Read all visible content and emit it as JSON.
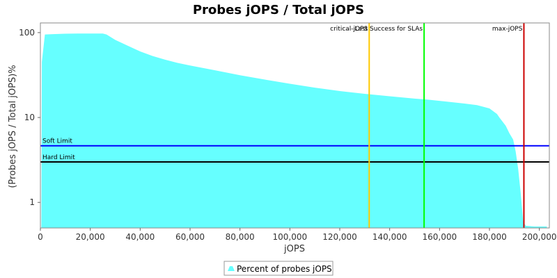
{
  "chart_data": {
    "type": "area",
    "title": "Probes jOPS / Total jOPS",
    "xlabel": "jOPS",
    "ylabel": "(Probes jOPS / Total jOPS)%",
    "xlim": [
      0,
      204000
    ],
    "ylim": [
      0.5,
      130
    ],
    "yscale": "log",
    "grid": false,
    "x_ticks": [
      0,
      20000,
      40000,
      60000,
      80000,
      100000,
      120000,
      140000,
      160000,
      180000,
      200000
    ],
    "x_tick_labels": [
      "0",
      "20,000",
      "40,000",
      "60,000",
      "80,000",
      "100,000",
      "120,000",
      "140,000",
      "160,000",
      "180,000",
      "200,000"
    ],
    "y_ticks": [
      1,
      10,
      100
    ],
    "y_tick_labels": [
      "1",
      "10",
      "100"
    ],
    "series": [
      {
        "name": "Percent of probes jOPS",
        "color": "#66ffff",
        "points": [
          [
            400,
            0.5
          ],
          [
            600,
            45
          ],
          [
            1800,
            95
          ],
          [
            5000,
            96
          ],
          [
            10000,
            97
          ],
          [
            15000,
            97.5
          ],
          [
            20000,
            97.5
          ],
          [
            25000,
            97.5
          ],
          [
            26500,
            95
          ],
          [
            30000,
            82
          ],
          [
            35000,
            70
          ],
          [
            40000,
            60
          ],
          [
            45000,
            53
          ],
          [
            50000,
            48
          ],
          [
            55000,
            44
          ],
          [
            60000,
            41
          ],
          [
            70000,
            36
          ],
          [
            80000,
            31.5
          ],
          [
            90000,
            28
          ],
          [
            100000,
            25
          ],
          [
            110000,
            22.5
          ],
          [
            120000,
            20.5
          ],
          [
            130000,
            19
          ],
          [
            140000,
            17.8
          ],
          [
            150000,
            16.7
          ],
          [
            155000,
            16.3
          ],
          [
            160000,
            15.7
          ],
          [
            170000,
            14.6
          ],
          [
            175000,
            14
          ],
          [
            180000,
            12.8
          ],
          [
            183000,
            11
          ],
          [
            184000,
            10
          ],
          [
            186500,
            8
          ],
          [
            188000,
            6.5
          ],
          [
            189500,
            5.5
          ],
          [
            190500,
            4
          ],
          [
            191500,
            2.5
          ],
          [
            192500,
            1.3
          ],
          [
            193500,
            0.6
          ],
          [
            194500,
            0.53
          ],
          [
            198000,
            0.52
          ],
          [
            203000,
            0.52
          ],
          [
            203000,
            0.5
          ]
        ]
      }
    ],
    "horizontal_lines": [
      {
        "label": "Soft Limit",
        "y": 4.65,
        "color": "#0000ff"
      },
      {
        "label": "Hard Limit",
        "y": 3.0,
        "color": "#000000"
      }
    ],
    "vertical_lines": [
      {
        "label": "critical-jOPS",
        "x": 131800,
        "color": "#ffc800"
      },
      {
        "label": "Last Success for SLAs",
        "x": 153800,
        "color": "#00ff00"
      },
      {
        "label": "max-jOPS",
        "x": 193800,
        "color": "#cc0000"
      }
    ],
    "legend": {
      "position": "bottom-center",
      "entries": [
        "Percent of probes jOPS"
      ]
    }
  }
}
